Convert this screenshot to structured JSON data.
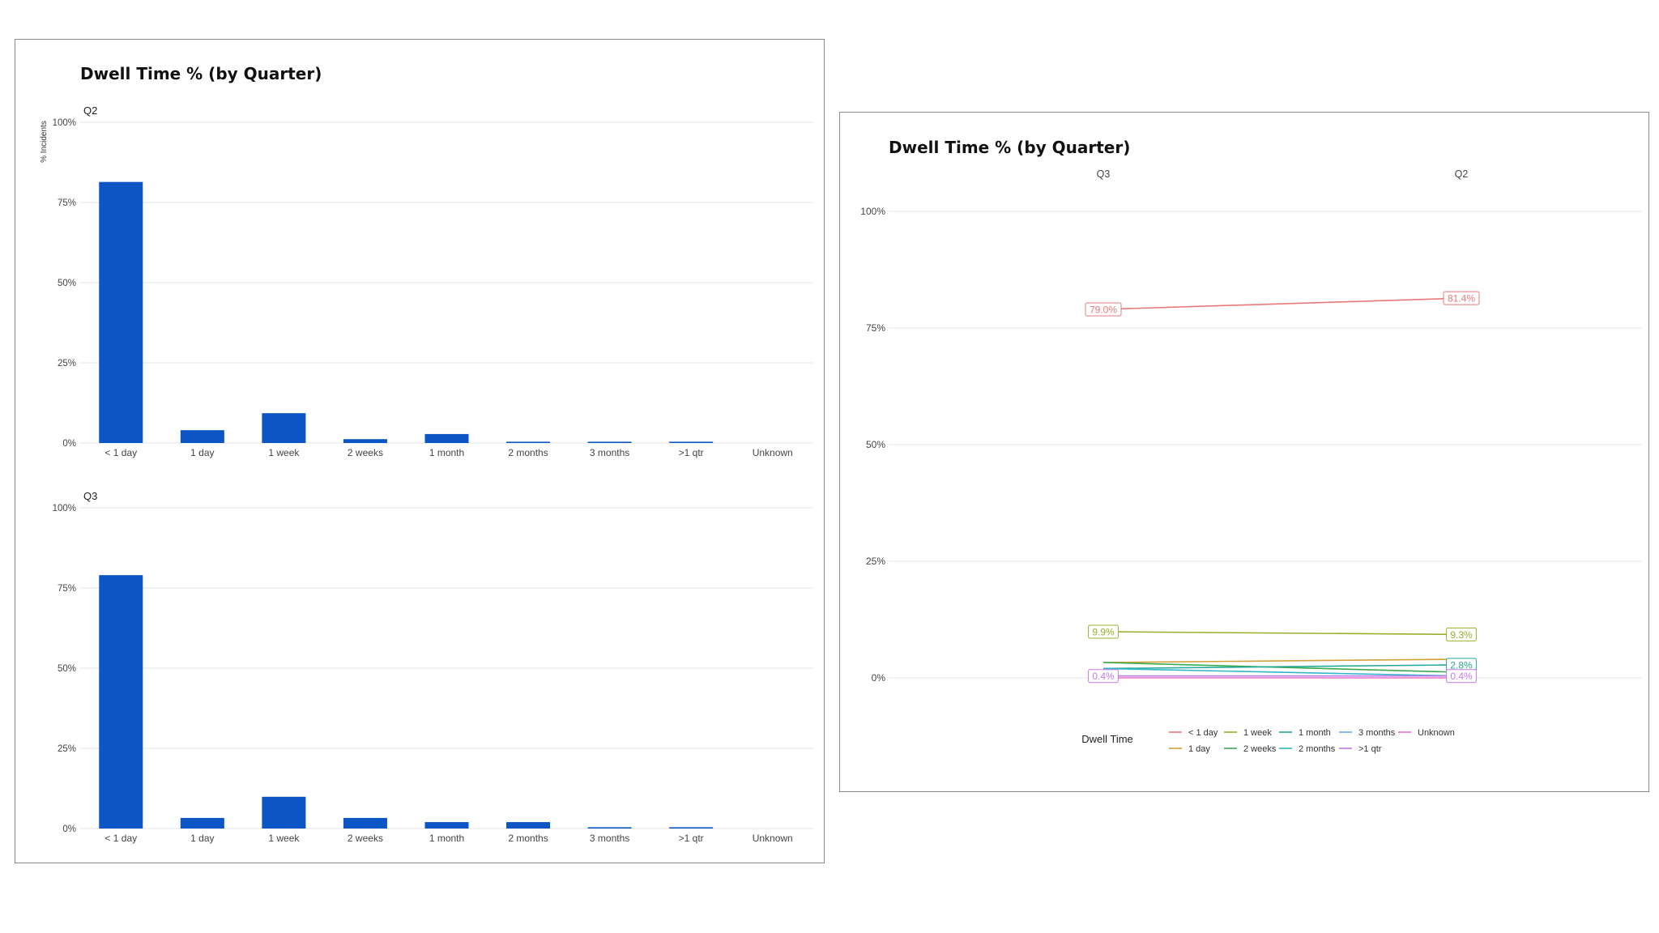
{
  "chart_data": [
    {
      "type": "bar",
      "title": "Dwell Time % (by Quarter)",
      "ylabel": "% Incidents",
      "ylim": [
        0,
        100
      ],
      "yticks": [
        "0%",
        "25%",
        "50%",
        "75%",
        "100%"
      ],
      "categories": [
        "< 1 day",
        "1 day",
        "1 week",
        "2 weeks",
        "1 month",
        "2 months",
        "3 months",
        ">1 qtr",
        "Unknown"
      ],
      "color": "#0b55c4",
      "facets": [
        {
          "name": "Q2",
          "values": [
            81.4,
            4.0,
            9.3,
            1.2,
            2.8,
            0.4,
            0.4,
            0.4,
            0
          ]
        },
        {
          "name": "Q3",
          "values": [
            79.0,
            3.3,
            9.9,
            3.3,
            2.0,
            2.0,
            0.4,
            0.4,
            0
          ]
        }
      ]
    },
    {
      "type": "line",
      "title": "Dwell Time % (by Quarter)",
      "ylim": [
        0,
        100
      ],
      "yticks": [
        "0%",
        "25%",
        "50%",
        "75%",
        "100%"
      ],
      "x": [
        "Q3",
        "Q2"
      ],
      "legend_title": "Dwell Time",
      "legend_position": "bottom",
      "series": [
        {
          "name": "< 1 day",
          "color": "#e8797a",
          "values": [
            79.0,
            81.4
          ],
          "labels": [
            "79.0%",
            "81.4%"
          ]
        },
        {
          "name": "1 day",
          "color": "#d4a03a",
          "values": [
            3.3,
            4.0
          ],
          "labels": [
            "",
            ""
          ]
        },
        {
          "name": "1 week",
          "color": "#9aae2c",
          "values": [
            9.9,
            9.3
          ],
          "labels": [
            "9.9%",
            "9.3%"
          ]
        },
        {
          "name": "2 weeks",
          "color": "#3aaa4e",
          "values": [
            3.3,
            1.2
          ],
          "labels": [
            "",
            ""
          ]
        },
        {
          "name": "1 month",
          "color": "#26a89a",
          "values": [
            2.0,
            2.8
          ],
          "labels": [
            "",
            "2.8%"
          ]
        },
        {
          "name": "2 months",
          "color": "#34b5c9",
          "values": [
            2.0,
            0.4
          ],
          "labels": [
            "",
            ""
          ]
        },
        {
          "name": "3 months",
          "color": "#6fa3e8",
          "values": [
            0.4,
            0.4
          ],
          "labels": [
            "",
            ""
          ]
        },
        {
          "name": ">1 qtr",
          "color": "#c07be8",
          "values": [
            0.4,
            0.4
          ],
          "labels": [
            "0.4%",
            "0.4%"
          ]
        },
        {
          "name": "Unknown",
          "color": "#e874c8",
          "values": [
            0,
            0
          ],
          "labels": [
            "",
            ""
          ]
        }
      ]
    }
  ]
}
